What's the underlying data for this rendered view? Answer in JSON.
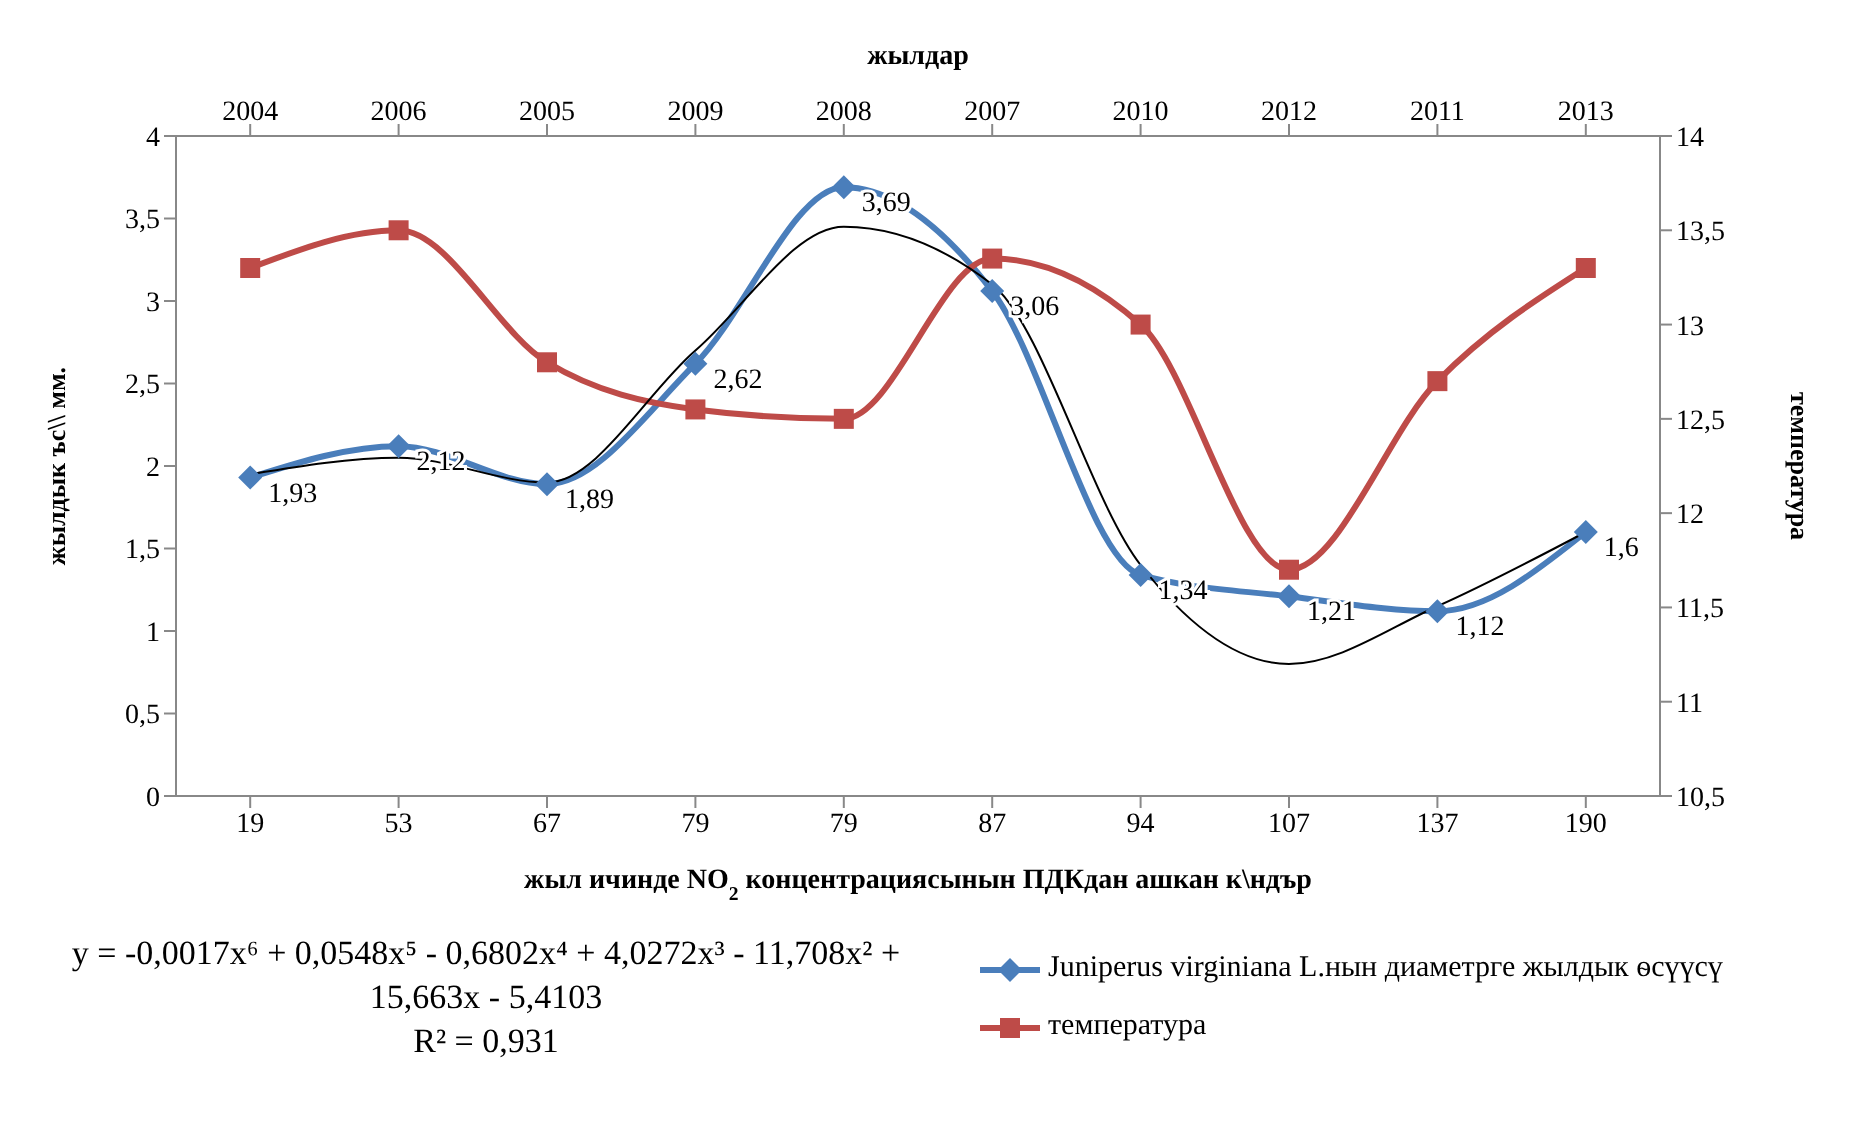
{
  "chart_data": {
    "type": "line",
    "xlabel": "жыл ичинде NO$_{2}$ концентрациясынын ПДКдан ашкан к\\ндър",
    "x2label": "жылдар",
    "ylabel": "жылдык ъс\\\\ мм.",
    "y2label": "температура",
    "categories": [
      "19",
      "53",
      "67",
      "79",
      "79",
      "87",
      "94",
      "107",
      "137",
      "190"
    ],
    "ylim": [
      0,
      4
    ],
    "yticks": [
      0,
      {
        "value": 0.5,
        "label": "0,5"
      },
      1,
      {
        "value": 1.5,
        "label": "1,5"
      },
      2,
      {
        "value": 2.5,
        "label": "2,5"
      },
      3,
      {
        "value": 3.5,
        "label": "3,5"
      },
      4
    ],
    "y2lim": [
      10.5,
      14
    ],
    "y2ticks": [
      {
        "value": 10.5,
        "label": "10,5"
      },
      11,
      {
        "value": 11.5,
        "label": "11,5"
      },
      12,
      {
        "value": 12.5,
        "label": "12,5"
      },
      13,
      {
        "value": 13.5,
        "label": "13,5"
      },
      14
    ],
    "series": [
      {
        "name": "Juniperus virginiana L.нын диаметрге жылдык ѳсүүсү",
        "color": "#4a7ebb",
        "marker": "diamond",
        "values": [
          1.93,
          2.12,
          1.89,
          2.62,
          3.69,
          3.06,
          1.34,
          1.21,
          1.12,
          1.6
        ],
        "value_labels": [
          "1,93",
          "2,12",
          "1,89",
          "2,62",
          "3,69",
          "3,06",
          "1,34",
          "1,21",
          "1,12",
          "1,6"
        ]
      },
      {
        "name": "температура",
        "color": "#be4b48",
        "marker": "square",
        "axis": "y2",
        "values": [
          13.3,
          13.5,
          12.8,
          12.55,
          12.5,
          13.35,
          13.0,
          11.7,
          12.7,
          13.3
        ]
      },
      {
        "type": "line",
        "color": "#000000",
        "marker": "none",
        "values": [
          1.95,
          2.05,
          1.9,
          2.7,
          3.45,
          3.1,
          1.4,
          0.8,
          1.15,
          1.6
        ]
      }
    ],
    "legend": "bottom right",
    "annotations": [
      "y = -0,0017x⁶ + 0,0548x⁵ - 0,6802x⁴ + 4,0272x³ - 11,708x² + 15,663x - 5,4103",
      "R² = 0,931",
      "2004",
      "2006",
      "2005",
      "2009",
      "2008",
      "2007",
      "2010",
      "2012",
      "2011",
      "2013"
    ]
  }
}
